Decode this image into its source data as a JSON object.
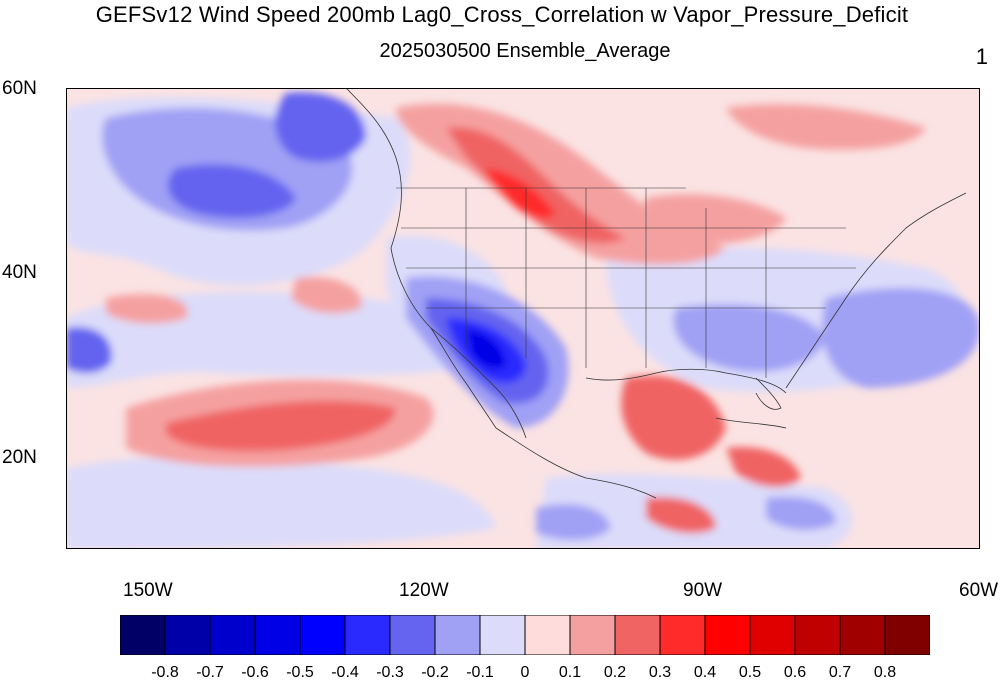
{
  "title": "GEFSv12 Wind Speed 200mb Lag0_Cross_Correlation w Vapor_Pressure_Deficit",
  "subtitle": "2025030500 Ensemble_Average",
  "panel_number": "1",
  "lat_labels": [
    "60N",
    "40N",
    "20N"
  ],
  "lon_labels": [
    "150W",
    "120W",
    "90W",
    "60W"
  ],
  "colorbar": {
    "colors": [
      "#000066",
      "#0000a8",
      "#0000cc",
      "#0000e6",
      "#0000ff",
      "#2a2aff",
      "#6464f0",
      "#a0a0f5",
      "#dcdcfa",
      "#ffdcdc",
      "#f5a0a0",
      "#f06464",
      "#ff2a2a",
      "#ff0000",
      "#e00000",
      "#c00000",
      "#a00000",
      "#800000"
    ],
    "labels": [
      "-0.8",
      "-0.7",
      "-0.6",
      "-0.5",
      "-0.4",
      "-0.3",
      "-0.2",
      "-0.1",
      "0",
      "0.1",
      "0.2",
      "0.3",
      "0.4",
      "0.5",
      "0.6",
      "0.7",
      "0.8"
    ]
  },
  "map": {
    "lat_range": [
      10,
      60
    ],
    "lon_range": [
      -160,
      -60
    ],
    "background_color": "#fbe6e6"
  }
}
